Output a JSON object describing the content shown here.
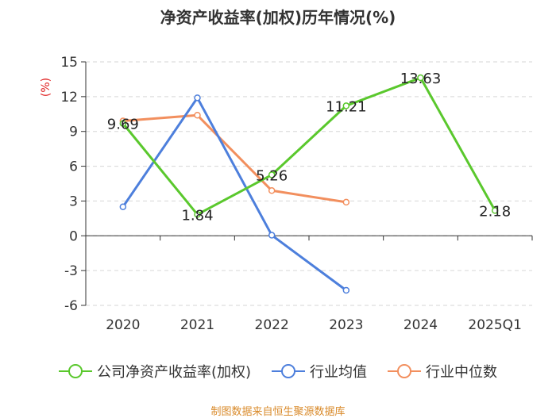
{
  "chart_data": {
    "type": "line",
    "title": "净资产收益率(加权)历年情况(%)",
    "ylabel": "(%)",
    "categories": [
      "2020",
      "2021",
      "2022",
      "2023",
      "2024",
      "2025Q1"
    ],
    "ylim": [
      -6,
      15
    ],
    "yticks": [
      "15",
      "12",
      "9",
      "6",
      "3",
      "0",
      "-3",
      "-6"
    ],
    "series": [
      {
        "name": "公司净资产收益率(加权)",
        "color": "#5ac82d",
        "values": [
          9.69,
          1.84,
          5.26,
          11.21,
          13.63,
          2.18
        ],
        "labels": [
          "9.69",
          "1.84",
          "5.26",
          "11.21",
          "13.63",
          "2.18"
        ]
      },
      {
        "name": "行业均值",
        "color": "#4d7fdc",
        "values": [
          2.5,
          11.9,
          0.05,
          -4.7,
          null,
          null
        ]
      },
      {
        "name": "行业中位数",
        "color": "#f28f5e",
        "values": [
          9.9,
          10.4,
          3.9,
          2.9,
          null,
          null
        ]
      }
    ]
  },
  "source": "制图数据来自恒生聚源数据库"
}
